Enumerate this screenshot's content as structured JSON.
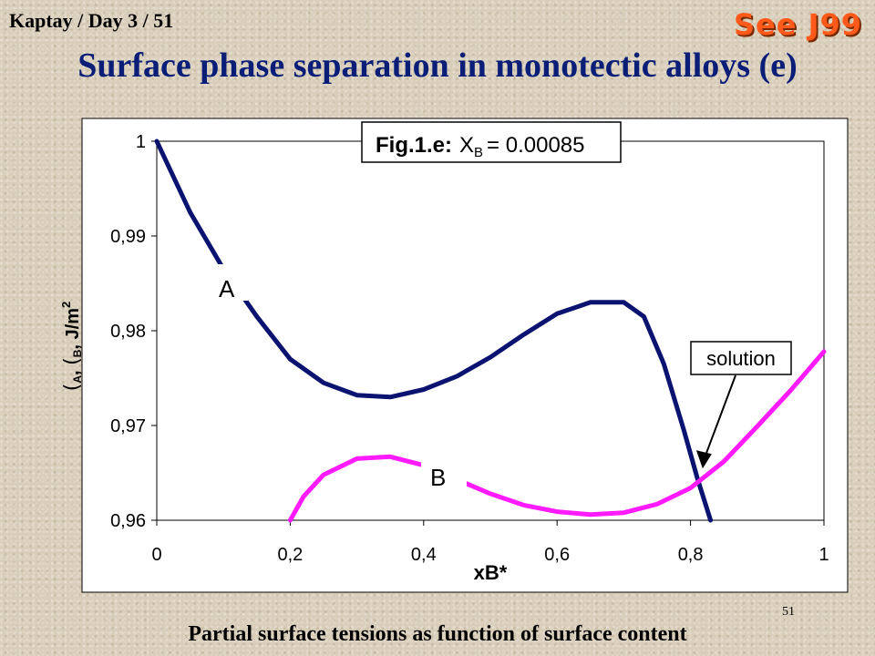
{
  "header": {
    "left_text": "Kaptay / Day 3 / 51",
    "right_text": "See J99",
    "title": "Surface phase separation in monotectic alloys (e)"
  },
  "footer": {
    "slide_number": "51",
    "caption": "Partial surface tensions as function of surface content"
  },
  "colors": {
    "series_a": "#0a1470",
    "series_b": "#ff1aff",
    "title": "#0a1e78",
    "accent": "#ff5a1a"
  },
  "chart_data": {
    "type": "line",
    "xlabel": "xB*",
    "ylabel_parts": [
      "A",
      "B",
      ", J/m",
      "2"
    ],
    "xlim": [
      0,
      1
    ],
    "ylim": [
      0.96,
      1.0
    ],
    "x_ticks": [
      0,
      0.2,
      0.4,
      0.6,
      0.8,
      1
    ],
    "x_tick_labels": [
      "0",
      "0,2",
      "0,4",
      "0,6",
      "0,8",
      "1"
    ],
    "y_ticks": [
      0.96,
      0.97,
      0.98,
      0.99,
      1.0
    ],
    "y_tick_labels": [
      "0,96",
      "0,97",
      "0,98",
      "0,99",
      "1"
    ],
    "grid": false,
    "series": [
      {
        "name": "A",
        "x": [
          0,
          0.05,
          0.1,
          0.15,
          0.2,
          0.25,
          0.3,
          0.35,
          0.4,
          0.45,
          0.5,
          0.55,
          0.6,
          0.65,
          0.7,
          0.73,
          0.76,
          0.79,
          0.81,
          0.83
        ],
        "y": [
          1.0,
          0.9925,
          0.9865,
          0.9815,
          0.977,
          0.9745,
          0.9732,
          0.973,
          0.9738,
          0.9752,
          0.9772,
          0.9796,
          0.9818,
          0.983,
          0.983,
          0.9815,
          0.9765,
          0.9695,
          0.9645,
          0.96
        ]
      },
      {
        "name": "B",
        "x": [
          0.2,
          0.22,
          0.25,
          0.3,
          0.35,
          0.4,
          0.45,
          0.5,
          0.55,
          0.6,
          0.65,
          0.7,
          0.75,
          0.8,
          0.85,
          0.9,
          0.95,
          1.0
        ],
        "y": [
          0.96,
          0.9625,
          0.9648,
          0.9665,
          0.9667,
          0.9658,
          0.9643,
          0.9628,
          0.9616,
          0.9609,
          0.9606,
          0.9608,
          0.9617,
          0.9634,
          0.9662,
          0.9699,
          0.9737,
          0.9778
        ]
      }
    ],
    "annotations": {
      "fig_label_bold": "Fig.1.e:",
      "fig_label_rest": "X",
      "fig_label_sub": "B",
      "fig_label_value": "= 0.00085",
      "solution_label": "solution",
      "solution_point": [
        0.81,
        0.9645
      ]
    }
  }
}
